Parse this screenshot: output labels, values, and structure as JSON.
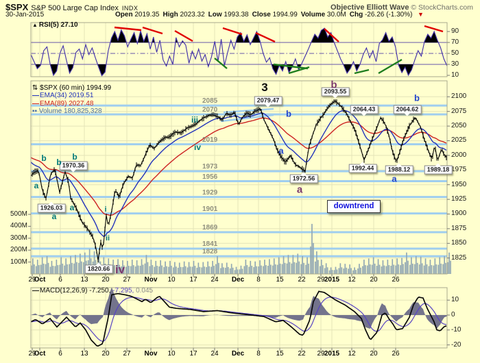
{
  "header": {
    "symbol": "$SPX",
    "name": "S&P 500 Large Cap Index",
    "exchange": "INDX",
    "brand_bold": "Objective Elliott Wave",
    "brand_rest": " © StockCharts.com",
    "date": "30-Jan-2015",
    "quote": [
      {
        "label": "Open",
        "value": "2019.35"
      },
      {
        "label": "High",
        "value": "2023.32"
      },
      {
        "label": "Low",
        "value": "1993.38"
      },
      {
        "label": "Close",
        "value": "1994.99"
      },
      {
        "label": "Volume",
        "value": "30.0M"
      },
      {
        "label": "Chg",
        "value": "-26.26 (-1.30%)"
      }
    ],
    "chg_arrow": "▼"
  },
  "icons": {
    "rsi_area": "▲",
    "price_updown": "⇅",
    "line_dash": "—",
    "volume_bars": "▪▪"
  },
  "legends": {
    "rsi": "RSI(5) 27.10",
    "price": "$SPX (60 min) 1994.99",
    "ema34": "EMA(34) 2019.51",
    "ema89": "EMA(89) 2027.48",
    "volume": "Volume 180,825,328",
    "macd_name": "MACD(12,26,9)",
    "macd_v1": " -7.250,",
    "macd_v2": " -7.295,",
    "macd_v3": " 0.045"
  },
  "axes": {
    "dates": [
      "29",
      "Oct",
      "6",
      "13",
      "20",
      "27",
      "Nov",
      "10",
      "17",
      "24",
      "Dec",
      "8",
      "15",
      "22",
      "29",
      "2015",
      "12",
      "20",
      "26"
    ],
    "dates_bold": [
      0,
      1,
      0,
      0,
      0,
      0,
      1,
      0,
      0,
      0,
      1,
      0,
      0,
      0,
      0,
      1,
      0,
      0,
      0
    ],
    "price": [
      "2100",
      "2075",
      "2050",
      "2025",
      "2000",
      "1975",
      "1950",
      "1925",
      "1900",
      "1875",
      "1850",
      "1825"
    ],
    "volume": [
      "500M",
      "400M",
      "300M",
      "200M",
      "100M"
    ],
    "rsi": [
      "90",
      "70",
      "50",
      "30",
      "10"
    ],
    "macd": [
      "10",
      "0",
      "-10",
      "-20"
    ]
  },
  "annotations": {
    "downtrend": {
      "text": "downtrend"
    },
    "callouts": [
      [
        "2079.47",
        391,
        147,
        "nb"
      ],
      [
        "2093.55",
        489,
        134,
        "nb"
      ],
      [
        "2064.43",
        531,
        160,
        "nb"
      ],
      [
        "2064.62",
        594,
        160,
        "nb"
      ],
      [
        "1970.36",
        107,
        242,
        "nb"
      ],
      [
        "1926.03",
        75,
        304,
        "nt"
      ],
      [
        "1820.66",
        144,
        393,
        "nt"
      ],
      [
        "1972.56",
        443,
        261,
        "nt"
      ],
      [
        "1992.44",
        529,
        246,
        "nt"
      ],
      [
        "1988.12",
        582,
        248,
        "nt"
      ],
      [
        "1989.18",
        639,
        248,
        "nt"
      ]
    ],
    "wave_labels": [
      [
        "b",
        64,
        231,
        "teal",
        12
      ],
      [
        "b",
        86,
        237,
        "teal",
        12
      ],
      [
        "b",
        109,
        229,
        "teal",
        12
      ],
      [
        "a",
        53,
        271,
        "teal",
        12
      ],
      [
        "a",
        105,
        303,
        "teal",
        12
      ],
      [
        "a",
        79,
        316,
        "teal",
        12
      ],
      [
        "i",
        154,
        306,
        "teal",
        11
      ],
      [
        "ii",
        157,
        348,
        "teal",
        11
      ],
      [
        "iii",
        284,
        175,
        "teal",
        12
      ],
      [
        "iv",
        288,
        215,
        "teal",
        12
      ],
      [
        "iv",
        175,
        394,
        "purple",
        17
      ],
      [
        "a",
        437,
        277,
        "purple",
        15
      ],
      [
        "b",
        487,
        124,
        "purple",
        15
      ],
      [
        "3",
        386,
        128,
        "black",
        17
      ],
      [
        "b",
        421,
        166,
        "blue",
        13
      ],
      [
        "a",
        410,
        220,
        "blue",
        13
      ],
      [
        "b",
        608,
        143,
        "blue",
        13
      ],
      [
        "a",
        575,
        261,
        "blue",
        13
      ]
    ],
    "rsi_red_lines": [
      [
        167,
        40,
        206,
        44
      ],
      [
        208,
        40,
        237,
        49
      ],
      [
        255,
        45,
        281,
        60
      ],
      [
        325,
        41,
        353,
        50
      ],
      [
        373,
        48,
        401,
        61
      ],
      [
        473,
        42,
        494,
        61
      ],
      [
        619,
        38,
        646,
        46
      ]
    ],
    "rsi_green_lines": [
      [
        313,
        85,
        331,
        100
      ],
      [
        399,
        94,
        449,
        100
      ],
      [
        421,
        107,
        451,
        98
      ],
      [
        517,
        107,
        538,
        102
      ],
      [
        552,
        107,
        586,
        87
      ]
    ],
    "wedge_lines": [
      [
        326,
        164,
        399,
        159
      ],
      [
        322,
        177,
        399,
        168
      ]
    ]
  },
  "colors": {
    "background": "#ffffce",
    "grid": "#e4e4b8",
    "pivot_line": "#9fceef",
    "candle": "#000000",
    "ema34": "#2233bb",
    "ema89": "#cc2222",
    "rsi_line": "#4433aa",
    "rsi_band": "#6655aa",
    "red_trend": "#e00000",
    "green_trend": "#1e7d1e",
    "volume_bar": "#92a8b4",
    "macd_line": "#0a0a0a",
    "macd_signal": "#5743c4",
    "macd_hist": "#73738c",
    "change_down": "#cc0000"
  },
  "chart_data": [
    {
      "type": "line",
      "title": "RSI(5)",
      "current_value": 27.1,
      "ylim": [
        0,
        100
      ],
      "overbought_level": 70,
      "midline": 50,
      "oversold_level": 30,
      "values": [
        48,
        35,
        22,
        28,
        55,
        62,
        30,
        10,
        18,
        50,
        64,
        38,
        14,
        24,
        52,
        58,
        40,
        66,
        48,
        60,
        42,
        25,
        9,
        16,
        55,
        78,
        90,
        74,
        93,
        82,
        62,
        76,
        88,
        68,
        91,
        72,
        86,
        58,
        80,
        52,
        74,
        38,
        27,
        45,
        30,
        79,
        62,
        73,
        65,
        32,
        54,
        40,
        58,
        36,
        48,
        26,
        44,
        72,
        35,
        76,
        28,
        52,
        74,
        58,
        80,
        88,
        72,
        84,
        66,
        78,
        90,
        73,
        50,
        34,
        42,
        22,
        12,
        28,
        18,
        35,
        15,
        25,
        40,
        20,
        32,
        45,
        58,
        72,
        85,
        78,
        92,
        96,
        80,
        88,
        70,
        55,
        40,
        28,
        14,
        22,
        35,
        18,
        30,
        48,
        60,
        42,
        55,
        35,
        68,
        75,
        88,
        72,
        80,
        62,
        28,
        15,
        25,
        10,
        20,
        38,
        55,
        45,
        72,
        85,
        78,
        90,
        74,
        60,
        40,
        27
      ]
    },
    {
      "type": "candlestick",
      "title": "$SPX (60 min)",
      "ohlc_today": {
        "open": 2019.35,
        "high": 2023.32,
        "low": 1993.38,
        "close": 1994.99
      },
      "ylim": [
        1815,
        2110
      ],
      "pivot_levels": [
        2085,
        2070,
        2019,
        1973,
        1956,
        1929,
        1901,
        1869,
        1841,
        1828
      ],
      "price_path_x_price": [
        [
          45,
          1966
        ],
        [
          50,
          1972
        ],
        [
          56,
          1974
        ],
        [
          62,
          1940
        ],
        [
          67,
          1926
        ],
        [
          74,
          1968
        ],
        [
          80,
          1977
        ],
        [
          87,
          1937
        ],
        [
          95,
          1972
        ],
        [
          100,
          1955
        ],
        [
          103,
          1928
        ],
        [
          112,
          1908
        ],
        [
          120,
          1886
        ],
        [
          128,
          1874
        ],
        [
          135,
          1862
        ],
        [
          140,
          1842
        ],
        [
          143,
          1821
        ],
        [
          147,
          1852
        ],
        [
          150,
          1838
        ],
        [
          155,
          1898
        ],
        [
          158,
          1878
        ],
        [
          163,
          1906
        ],
        [
          168,
          1942
        ],
        [
          174,
          1928
        ],
        [
          180,
          1952
        ],
        [
          187,
          1964
        ],
        [
          193,
          1961
        ],
        [
          199,
          1984
        ],
        [
          205,
          1982
        ],
        [
          211,
          1998
        ],
        [
          218,
          2018
        ],
        [
          225,
          2012
        ],
        [
          232,
          2023
        ],
        [
          240,
          2030
        ],
        [
          248,
          2032
        ],
        [
          256,
          2040
        ],
        [
          264,
          2038
        ],
        [
          272,
          2046
        ],
        [
          280,
          2050
        ],
        [
          288,
          2056
        ],
        [
          296,
          2063
        ],
        [
          304,
          2068
        ],
        [
          312,
          2070
        ],
        [
          318,
          2066
        ],
        [
          324,
          2060
        ],
        [
          330,
          2072
        ],
        [
          336,
          2068
        ],
        [
          342,
          2074
        ],
        [
          348,
          2052
        ],
        [
          354,
          2066
        ],
        [
          360,
          2072
        ],
        [
          366,
          2069
        ],
        [
          372,
          2076
        ],
        [
          380,
          2079
        ],
        [
          386,
          2058
        ],
        [
          392,
          2044
        ],
        [
          398,
          2030
        ],
        [
          404,
          2010
        ],
        [
          410,
          1998
        ],
        [
          416,
          1988
        ],
        [
          424,
          2000
        ],
        [
          430,
          1985
        ],
        [
          437,
          1980
        ],
        [
          445,
          1973
        ],
        [
          450,
          2012
        ],
        [
          456,
          2035
        ],
        [
          461,
          2052
        ],
        [
          466,
          2061
        ],
        [
          472,
          2070
        ],
        [
          478,
          2082
        ],
        [
          488,
          2093
        ],
        [
          494,
          2088
        ],
        [
          500,
          2080
        ],
        [
          506,
          2070
        ],
        [
          512,
          2056
        ],
        [
          518,
          2042
        ],
        [
          524,
          2020
        ],
        [
          531,
          1992
        ],
        [
          537,
          2010
        ],
        [
          543,
          2028
        ],
        [
          549,
          2046
        ],
        [
          555,
          2064
        ],
        [
          560,
          2058
        ],
        [
          564,
          2046
        ],
        [
          568,
          2030
        ],
        [
          572,
          2008
        ],
        [
          578,
          1988
        ],
        [
          582,
          2002
        ],
        [
          586,
          2018
        ],
        [
          590,
          2032
        ],
        [
          596,
          2048
        ],
        [
          602,
          2060
        ],
        [
          606,
          2064
        ],
        [
          610,
          2056
        ],
        [
          614,
          2046
        ],
        [
          618,
          2030
        ],
        [
          624,
          2010
        ],
        [
          630,
          1992
        ],
        [
          634,
          2018
        ],
        [
          638,
          1989
        ],
        [
          644,
          2012
        ],
        [
          648,
          2000
        ],
        [
          652,
          1995
        ]
      ]
    },
    {
      "type": "bar",
      "title": "Volume",
      "unit": "millions",
      "current_value": 180825328,
      "daily_values": [
        130,
        120,
        140,
        150,
        110,
        120,
        140,
        130,
        150,
        160,
        170,
        180,
        210,
        190,
        170,
        140,
        130,
        120,
        125,
        115,
        110,
        120,
        115,
        125,
        160,
        120,
        110,
        115,
        105,
        110,
        100,
        95,
        105,
        100,
        110,
        95,
        100,
        105,
        110,
        150,
        90,
        95,
        85,
        60,
        70,
        120,
        110,
        105,
        115,
        120,
        125,
        130,
        140,
        150,
        160,
        160,
        170,
        150,
        140,
        420,
        190,
        120,
        90,
        55,
        60,
        90,
        85,
        80,
        55,
        85,
        120,
        130,
        140,
        125,
        115,
        120,
        125,
        130,
        135,
        180,
        140,
        150,
        145,
        130,
        120,
        130,
        140,
        150,
        180
      ]
    },
    {
      "type": "line",
      "title": "MACD(12,26,9)",
      "current_values": {
        "macd": -7.25,
        "signal": -7.295,
        "hist": 0.045
      },
      "ylim": [
        -25,
        18
      ],
      "macd_x_value": [
        [
          45,
          -4.5
        ],
        [
          52,
          -3
        ],
        [
          62,
          -6
        ],
        [
          73,
          -2.3
        ],
        [
          83,
          -8
        ],
        [
          97,
          -1.4
        ],
        [
          110,
          -8
        ],
        [
          117,
          -5.3
        ],
        [
          125,
          -10
        ],
        [
          133,
          -16.7
        ],
        [
          142,
          -21
        ],
        [
          150,
          -19
        ],
        [
          153,
          -12
        ],
        [
          158,
          -1.4
        ],
        [
          163,
          13.6
        ],
        [
          172,
          14.4
        ],
        [
          182,
          13.6
        ],
        [
          192,
          12.5
        ],
        [
          207,
          9
        ],
        [
          212,
          10.6
        ],
        [
          220,
          8.3
        ],
        [
          230,
          12.1
        ],
        [
          233,
          12.4
        ],
        [
          247,
          5.3
        ],
        [
          257,
          4.5
        ],
        [
          277,
          3.8
        ],
        [
          297,
          2.3
        ],
        [
          317,
          3
        ],
        [
          337,
          1.5
        ],
        [
          367,
          0
        ],
        [
          385,
          -1
        ],
        [
          402,
          -4.5
        ],
        [
          413,
          -3.6
        ],
        [
          425,
          -8
        ],
        [
          437,
          -12.9
        ],
        [
          442,
          -13.6
        ],
        [
          452,
          -3
        ],
        [
          457,
          9
        ],
        [
          465,
          15.9
        ],
        [
          473,
          15.1
        ],
        [
          490,
          9.9
        ],
        [
          503,
          6.8
        ],
        [
          517,
          2.3
        ],
        [
          527,
          -2.3
        ],
        [
          533,
          -9.9
        ],
        [
          540,
          -16.7
        ],
        [
          550,
          -11.4
        ],
        [
          557,
          0
        ],
        [
          562,
          1.5
        ],
        [
          567,
          -2.3
        ],
        [
          573,
          -6
        ],
        [
          578,
          -9.9
        ],
        [
          587,
          -9.1
        ],
        [
          597,
          -1.5
        ],
        [
          603,
          6.8
        ],
        [
          610,
          12.1
        ],
        [
          617,
          11.4
        ],
        [
          623,
          4.5
        ],
        [
          633,
          -4.5
        ],
        [
          637,
          -9.9
        ],
        [
          642,
          -10.6
        ],
        [
          648,
          -7.6
        ],
        [
          652,
          -7.25
        ]
      ]
    }
  ]
}
